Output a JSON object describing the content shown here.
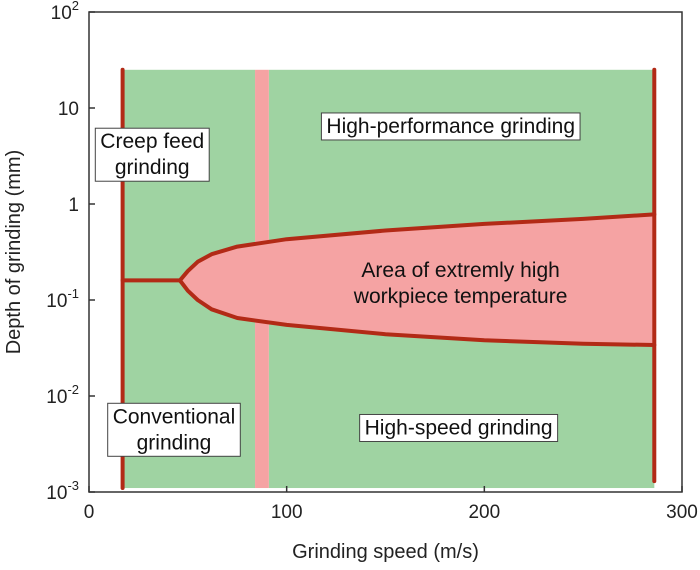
{
  "chart_data": {
    "type": "area",
    "title": "",
    "xlabel": "Grinding speed (m/s)",
    "ylabel": "Depth of grinding (mm)",
    "x_scale": "linear",
    "y_scale": "log",
    "xlim": [
      0,
      300
    ],
    "ylim": [
      0.001,
      100
    ],
    "x_ticks": [
      {
        "value": 0,
        "label": "0"
      },
      {
        "value": 100,
        "label": "100"
      },
      {
        "value": 200,
        "label": "200"
      },
      {
        "value": 300,
        "label": "300"
      }
    ],
    "y_ticks": [
      {
        "value": 0.001,
        "base": "10",
        "exp": "-3"
      },
      {
        "value": 0.01,
        "base": "10",
        "exp": "-2"
      },
      {
        "value": 0.1,
        "base": "10",
        "exp": "-1"
      },
      {
        "value": 1,
        "base": "1",
        "exp": ""
      },
      {
        "value": 10,
        "base": "10",
        "exp": ""
      },
      {
        "value": 100,
        "base": "10",
        "exp": "2"
      }
    ],
    "grid": false,
    "legend": "none",
    "colors": {
      "green_region": "#9fd3a2",
      "hot_region": "#f5a3a3",
      "boundary": "#b22a16"
    },
    "green_regions": [
      {
        "x": [
          17,
          84
        ],
        "y": [
          0.0011,
          25
        ]
      },
      {
        "x": [
          91,
          286
        ],
        "y": [
          0.0011,
          25
        ]
      }
    ],
    "pink_band": {
      "x": [
        84,
        91
      ],
      "y": [
        0.0011,
        25
      ]
    },
    "boundary_lines": [
      {
        "x": [
          17,
          17
        ],
        "y": [
          0.0011,
          25
        ]
      },
      {
        "x": [
          286,
          286
        ],
        "y": [
          0.0013,
          25
        ]
      }
    ],
    "hot_region": {
      "upper": {
        "x": [
          17,
          46,
          50,
          55,
          62,
          75,
          100,
          150,
          200,
          250,
          286
        ],
        "y": [
          0.16,
          0.16,
          0.2,
          0.25,
          0.3,
          0.36,
          0.43,
          0.53,
          0.62,
          0.7,
          0.78
        ]
      },
      "lower": {
        "x": [
          46,
          50,
          55,
          62,
          75,
          100,
          150,
          200,
          250,
          286
        ],
        "y": [
          0.16,
          0.125,
          0.1,
          0.08,
          0.065,
          0.055,
          0.044,
          0.038,
          0.035,
          0.034
        ]
      }
    },
    "annotations": [
      {
        "lines": [
          "Creep feed",
          "grinding"
        ],
        "x": 32,
        "y": 3.3
      },
      {
        "lines": [
          "High-performance grinding"
        ],
        "x": 183,
        "y": 6.5
      },
      {
        "lines": [
          "Area of extremly high",
          "workpiece temperature"
        ],
        "x": 188,
        "y": 0.15
      },
      {
        "lines": [
          "Conventional",
          "grinding"
        ],
        "x": 43,
        "y": 0.0045
      },
      {
        "lines": [
          "High-speed grinding"
        ],
        "x": 187,
        "y": 0.0047
      }
    ]
  }
}
